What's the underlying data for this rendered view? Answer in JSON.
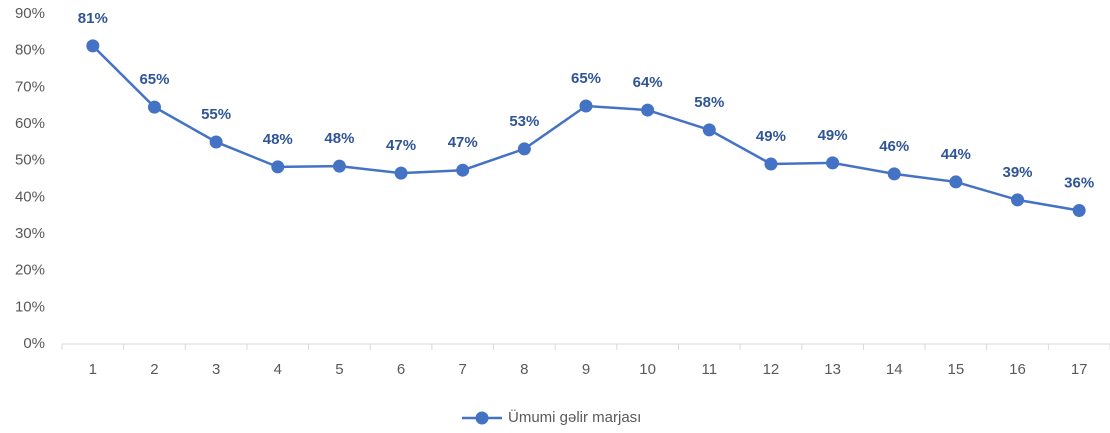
{
  "chart_data": {
    "type": "line",
    "categories": [
      "1",
      "2",
      "3",
      "4",
      "5",
      "6",
      "7",
      "8",
      "9",
      "10",
      "11",
      "12",
      "13",
      "14",
      "15",
      "16",
      "17"
    ],
    "series": [
      {
        "name": "Ümumi gəlir marjası",
        "color": "#4472c4",
        "values": [
          81.3,
          64.6,
          55.1,
          48.3,
          48.5,
          46.6,
          47.4,
          53.2,
          64.9,
          63.8,
          58.4,
          49.1,
          49.4,
          46.4,
          44.2,
          39.3,
          36.4
        ],
        "value_labels": [
          "81%",
          "65%",
          "55%",
          "48%",
          "48%",
          "47%",
          "47%",
          "53%",
          "65%",
          "64%",
          "58%",
          "49%",
          "49%",
          "46%",
          "44%",
          "39%",
          "36%"
        ]
      }
    ],
    "ylim": [
      0,
      90
    ],
    "yticks": [
      {
        "value": 0,
        "label": "0%"
      },
      {
        "value": 10,
        "label": "10%"
      },
      {
        "value": 20,
        "label": "20%"
      },
      {
        "value": 30,
        "label": "30%"
      },
      {
        "value": 40,
        "label": "40%"
      },
      {
        "value": 50,
        "label": "50%"
      },
      {
        "value": 60,
        "label": "60%"
      },
      {
        "value": 70,
        "label": "70%"
      },
      {
        "value": 80,
        "label": "80%"
      },
      {
        "value": 90,
        "label": "90%"
      }
    ],
    "grid": false,
    "legend": "bottom"
  }
}
